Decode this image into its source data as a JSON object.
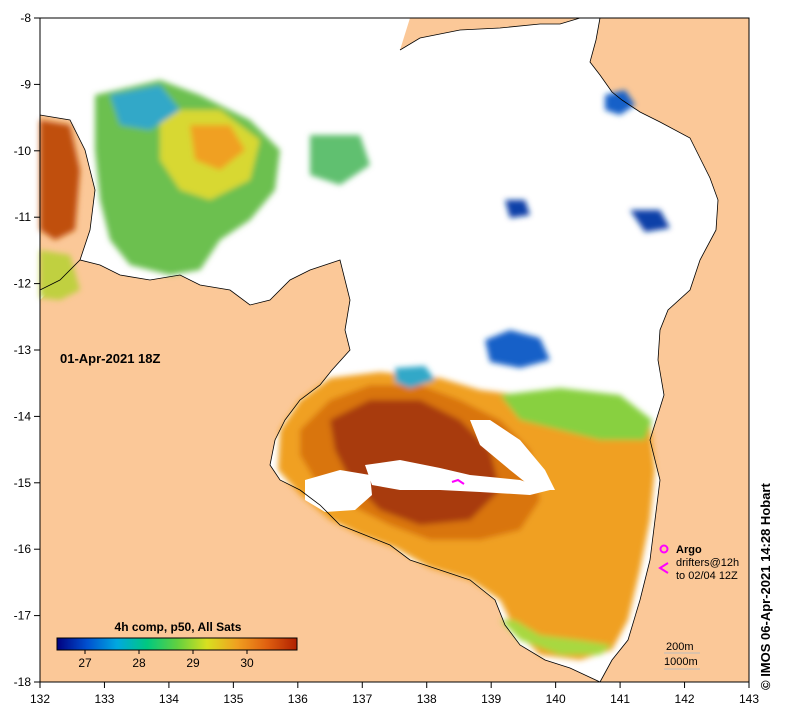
{
  "map": {
    "timestamp": "01-Apr-2021 18Z",
    "x_ticks": [
      "132",
      "133",
      "134",
      "135",
      "136",
      "137",
      "138",
      "139",
      "140",
      "141",
      "142",
      "143"
    ],
    "y_ticks": [
      "-8",
      "-9",
      "-10",
      "-11",
      "-12",
      "-13",
      "-14",
      "-15",
      "-16",
      "-17",
      "-18"
    ],
    "colors": {
      "land": "#fbc898",
      "cloud": "#ffffff",
      "warm_dark": "#a83a08",
      "warm": "#d9740c",
      "mid": "#f0a020",
      "cool": "#88d040",
      "cold": "#1860c8"
    }
  },
  "colorbar": {
    "title": "4h comp, p50, All Sats",
    "ticks": [
      "27",
      "28",
      "29",
      "30"
    ],
    "colors": [
      "#000080",
      "#0050d0",
      "#00a8e0",
      "#00c880",
      "#60d040",
      "#d8e020",
      "#f0a020",
      "#e06010",
      "#b02000"
    ]
  },
  "legend": {
    "argo_label": "Argo",
    "drifters_label": "drifters@12h",
    "drifters_to": "to 02/04 12Z",
    "argo_icon": "argo-float-marker-icon",
    "drifter_icon": "drifter-track-icon"
  },
  "contours": {
    "c200": "200m",
    "c1000": "1000m"
  },
  "credit": "© IMOS 06-Apr-2021 14:28 Hobart"
}
